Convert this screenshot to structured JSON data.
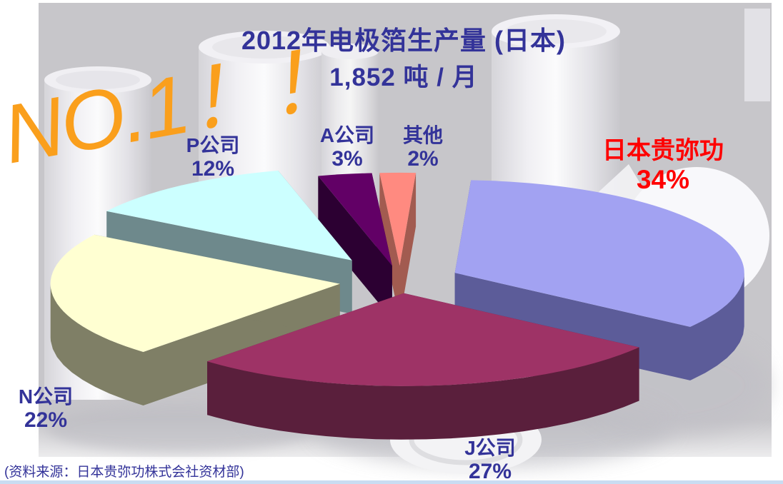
{
  "slide": {
    "title": "2012年电极箔生产量 (日本)",
    "subtitle": "1,852 吨 / 月",
    "annotation": "NO.1！！",
    "source": "(资料来源：日本贵弥功株式会社资材部)",
    "colors": {
      "title": "#333399",
      "annotation": "#FA9F1C",
      "label_default": "#333399",
      "label_highlight": "#FF0000",
      "background_gray": "#C7C6CA",
      "bottom_strip": "#C9DCF2"
    }
  },
  "chart_data": {
    "type": "pie",
    "style": "3d-exploded",
    "title": "2012年电极箔生产量 (日本)",
    "total": "1,852 吨 / 月",
    "unit": "%",
    "legend_position": "none",
    "slices": [
      {
        "label": "其他",
        "value": 2,
        "color": "#FF8A80",
        "side_color": "#A25B50",
        "label_color": "#333399"
      },
      {
        "label": "日本贵弥功",
        "value": 34,
        "color": "#A2A2F2",
        "side_color": "#5C5C99",
        "label_color": "#FF0000",
        "emphasis": true
      },
      {
        "label": "J公司",
        "value": 27,
        "color": "#9E3366",
        "side_color": "#5A1F3C",
        "label_color": "#333399"
      },
      {
        "label": "N公司",
        "value": 22,
        "color": "#FFFFD2",
        "side_color": "#7F7F66",
        "label_color": "#333399"
      },
      {
        "label": "P公司",
        "value": 12,
        "color": "#CCFFFF",
        "side_color": "#6E898C",
        "label_color": "#333399"
      },
      {
        "label": "A公司",
        "value": 3,
        "color": "#620066",
        "side_color": "#2C0032",
        "label_color": "#333399"
      }
    ]
  }
}
